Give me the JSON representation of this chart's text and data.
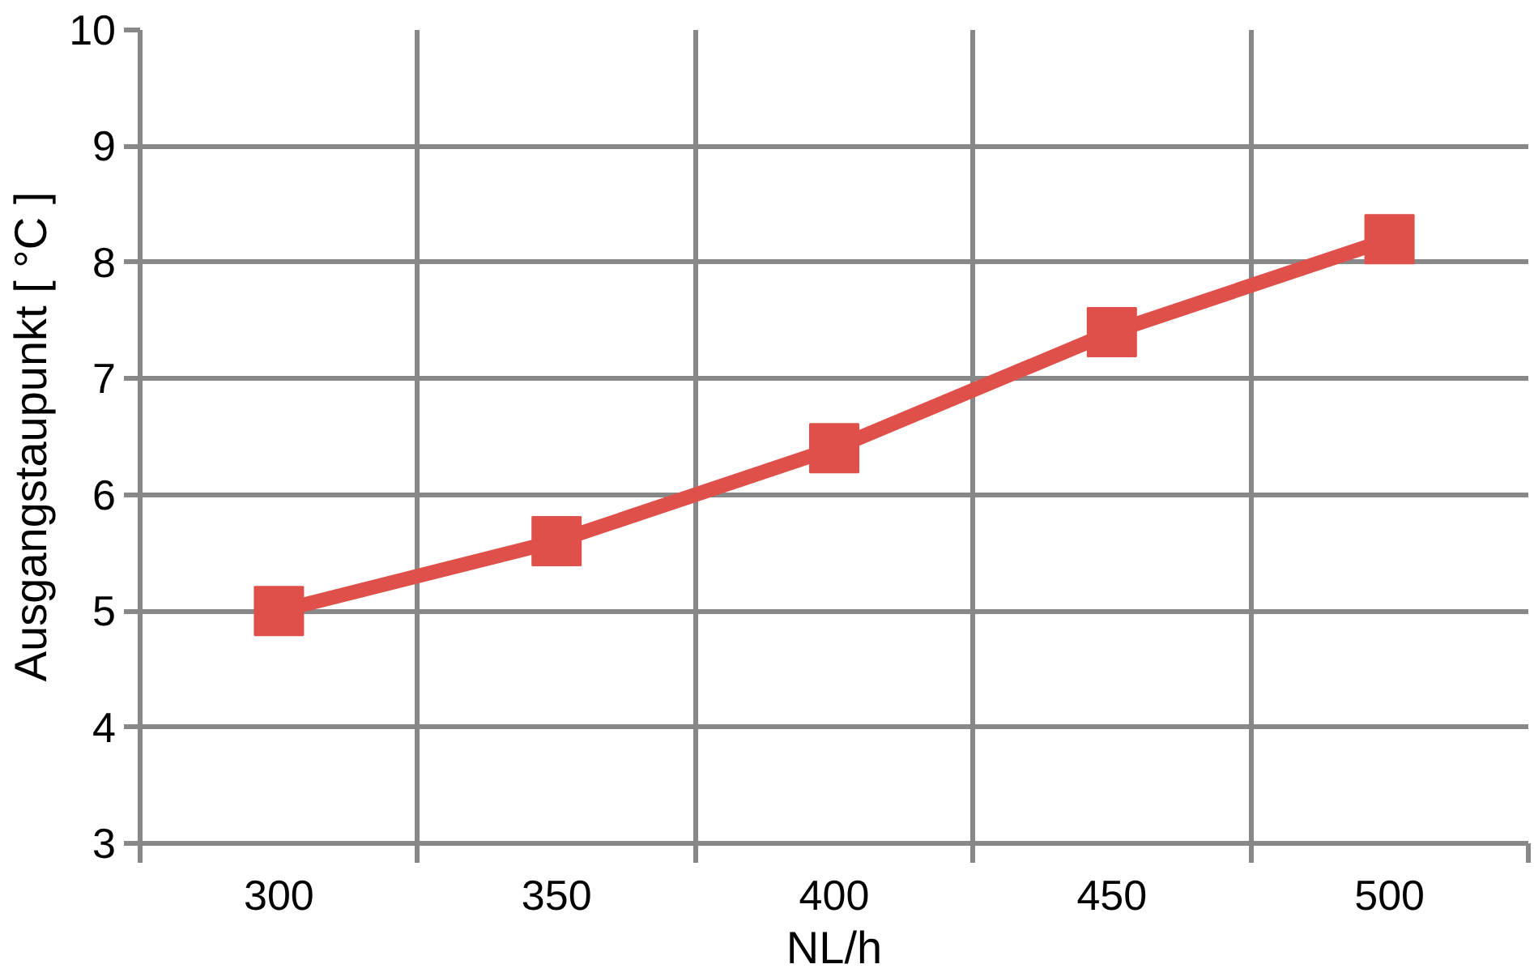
{
  "chart_data": {
    "type": "line",
    "xlabel": "NL/h",
    "ylabel": "Ausgangstaupunkt [ °C ]",
    "categories": [
      "300",
      "350",
      "400",
      "450",
      "500"
    ],
    "series": [
      {
        "color": "#e0504a",
        "values": [
          5.0,
          5.6,
          6.4,
          7.4,
          8.2
        ]
      }
    ],
    "ylim": [
      3,
      10
    ],
    "yticks": [
      3,
      4,
      5,
      6,
      7,
      8,
      9,
      10
    ],
    "grid": true,
    "marker": "square",
    "line_style": "solid"
  }
}
